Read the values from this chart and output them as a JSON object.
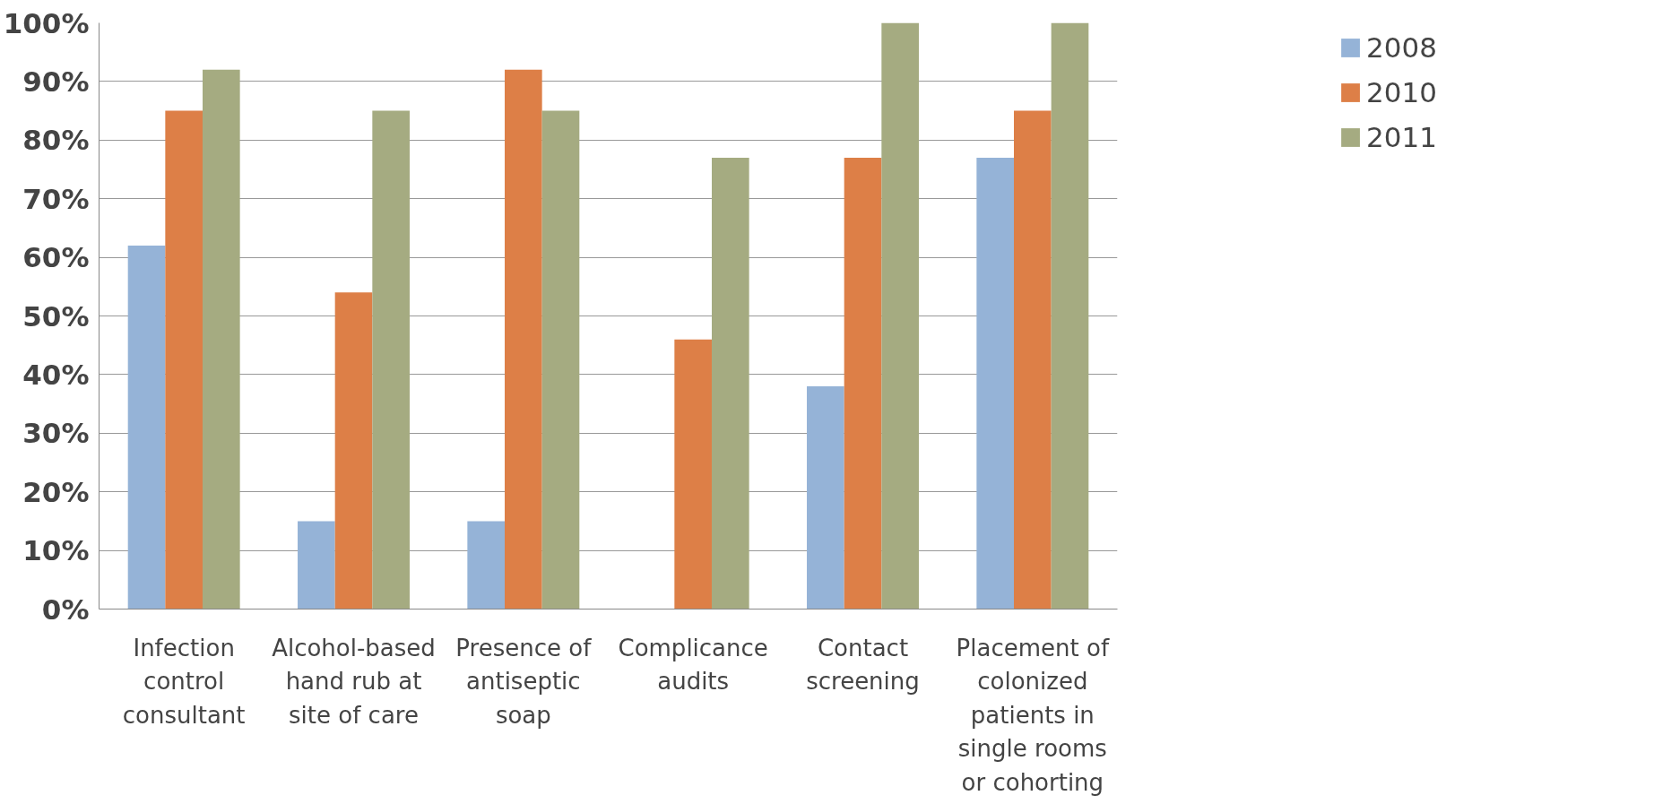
{
  "chart_data": {
    "type": "bar",
    "categories": [
      "Infection control consultant",
      "Alcohol-based hand rub at site of care",
      "Presence of antiseptic soap",
      "Complicance audits",
      "Contact screening",
      "Placement of colonized patients in single rooms or cohorting"
    ],
    "series": [
      {
        "name": "2008",
        "color": "#95b3d7",
        "values": [
          62,
          15,
          15,
          null,
          38,
          77
        ]
      },
      {
        "name": "2010",
        "color": "#dd7f47",
        "values": [
          85,
          54,
          92,
          46,
          77,
          85
        ]
      },
      {
        "name": "2011",
        "color": "#a5ab81",
        "values": [
          92,
          85,
          85,
          77,
          100,
          100
        ]
      }
    ],
    "ylim": [
      0,
      100
    ],
    "yticks": [
      {
        "value": 0,
        "label": "0%"
      },
      {
        "value": 10,
        "label": "10%"
      },
      {
        "value": 20,
        "label": "20%"
      },
      {
        "value": 30,
        "label": "30%"
      },
      {
        "value": 40,
        "label": "40%"
      },
      {
        "value": 50,
        "label": "50%"
      },
      {
        "value": 60,
        "label": "60%"
      },
      {
        "value": 70,
        "label": "70%"
      },
      {
        "value": 80,
        "label": "80%"
      },
      {
        "value": 90,
        "label": "90%"
      },
      {
        "value": 100,
        "label": "100%"
      }
    ],
    "grid": "y",
    "legend": "top right"
  }
}
